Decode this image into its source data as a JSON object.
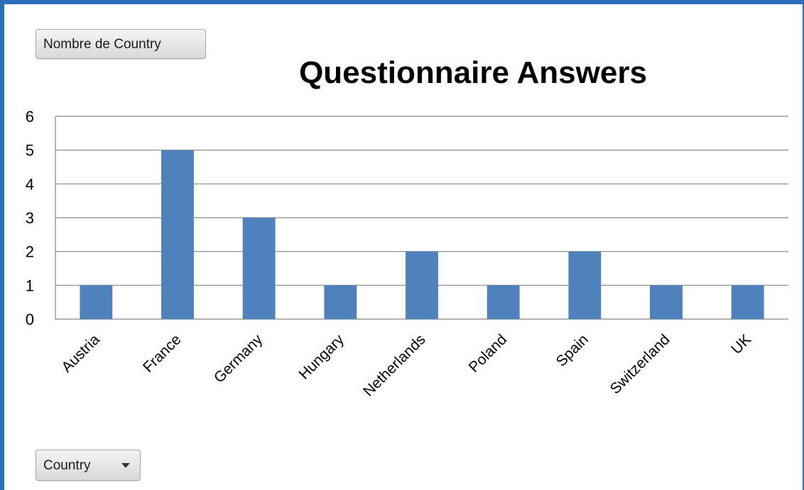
{
  "value_field_button": "Nombre de Country",
  "axis_field_button": "Country",
  "colors": {
    "frame": "#2c6fb8",
    "bar": "#4f81bd",
    "gridline": "#868686"
  },
  "chart_data": {
    "type": "bar",
    "title": "Questionnaire Answers",
    "categories": [
      "Austria",
      "France",
      "Germany",
      "Hungary",
      "Netherlands",
      "Poland",
      "Spain",
      "Switzerland",
      "UK"
    ],
    "values": [
      1,
      5,
      3,
      1,
      2,
      1,
      2,
      1,
      1
    ],
    "xlabel": "",
    "ylabel": "",
    "ylim": [
      0,
      6
    ],
    "yticks": [
      0,
      1,
      2,
      3,
      4,
      5,
      6
    ],
    "grid": true,
    "legend": "none"
  }
}
